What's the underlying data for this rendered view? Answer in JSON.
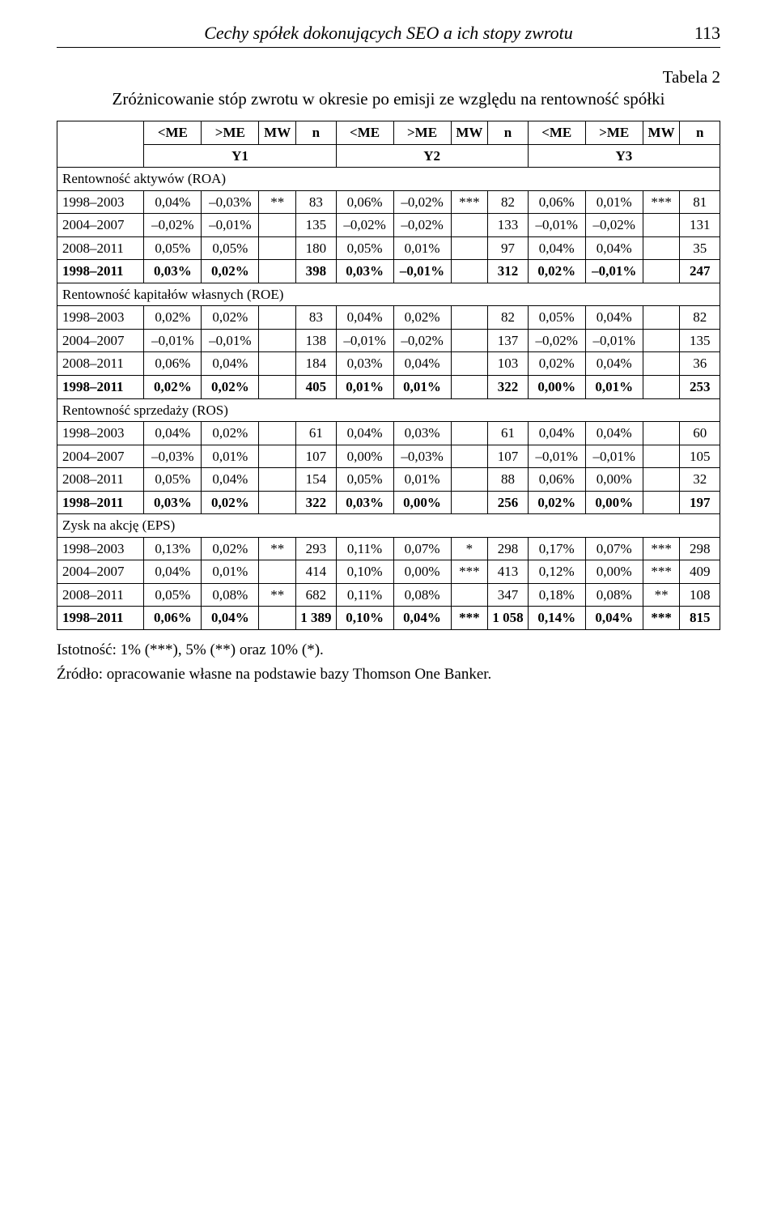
{
  "header": {
    "running_title": "Cechy spółek dokonujących SEO a ich stopy zwrotu",
    "page_number": "113"
  },
  "table_label": "Tabela 2",
  "table_title": "Zróżnicowanie stóp zwrotu w okresie po emisji ze względu na rentowność spółki",
  "col_headers": {
    "lt_me": "<ME",
    "gt_me": ">ME",
    "mw": "MW",
    "n": "n",
    "y1": "Y1",
    "y2": "Y2",
    "y3": "Y3"
  },
  "sections": [
    {
      "title": "Rentowność aktywów (ROA)",
      "rows": [
        {
          "period": "1998–2003",
          "lt1": "0,04%",
          "gt1": "–0,03%",
          "mw1": "**",
          "n1": "83",
          "lt2": "0,06%",
          "gt2": "–0,02%",
          "mw2": "***",
          "n2": "82",
          "lt3": "0,06%",
          "gt3": "0,01%",
          "mw3": "***",
          "n3": "81"
        },
        {
          "period": "2004–2007",
          "lt1": "–0,02%",
          "gt1": "–0,01%",
          "mw1": "",
          "n1": "135",
          "lt2": "–0,02%",
          "gt2": "–0,02%",
          "mw2": "",
          "n2": "133",
          "lt3": "–0,01%",
          "gt3": "–0,02%",
          "mw3": "",
          "n3": "131"
        },
        {
          "period": "2008–2011",
          "lt1": "0,05%",
          "gt1": "0,05%",
          "mw1": "",
          "n1": "180",
          "lt2": "0,05%",
          "gt2": "0,01%",
          "mw2": "",
          "n2": "97",
          "lt3": "0,04%",
          "gt3": "0,04%",
          "mw3": "",
          "n3": "35"
        },
        {
          "period": "1998–2011",
          "lt1": "0,03%",
          "gt1": "0,02%",
          "mw1": "",
          "n1": "398",
          "lt2": "0,03%",
          "gt2": "–0,01%",
          "mw2": "",
          "n2": "312",
          "lt3": "0,02%",
          "gt3": "–0,01%",
          "mw3": "",
          "n3": "247",
          "bold": true
        }
      ]
    },
    {
      "title": "Rentowność kapitałów własnych (ROE)",
      "rows": [
        {
          "period": "1998–2003",
          "lt1": "0,02%",
          "gt1": "0,02%",
          "mw1": "",
          "n1": "83",
          "lt2": "0,04%",
          "gt2": "0,02%",
          "mw2": "",
          "n2": "82",
          "lt3": "0,05%",
          "gt3": "0,04%",
          "mw3": "",
          "n3": "82"
        },
        {
          "period": "2004–2007",
          "lt1": "–0,01%",
          "gt1": "–0,01%",
          "mw1": "",
          "n1": "138",
          "lt2": "–0,01%",
          "gt2": "–0,02%",
          "mw2": "",
          "n2": "137",
          "lt3": "–0,02%",
          "gt3": "–0,01%",
          "mw3": "",
          "n3": "135"
        },
        {
          "period": "2008–2011",
          "lt1": "0,06%",
          "gt1": "0,04%",
          "mw1": "",
          "n1": "184",
          "lt2": "0,03%",
          "gt2": "0,04%",
          "mw2": "",
          "n2": "103",
          "lt3": "0,02%",
          "gt3": "0,04%",
          "mw3": "",
          "n3": "36"
        },
        {
          "period": "1998–2011",
          "lt1": "0,02%",
          "gt1": "0,02%",
          "mw1": "",
          "n1": "405",
          "lt2": "0,01%",
          "gt2": "0,01%",
          "mw2": "",
          "n2": "322",
          "lt3": "0,00%",
          "gt3": "0,01%",
          "mw3": "",
          "n3": "253",
          "bold": true
        }
      ]
    },
    {
      "title": "Rentowność sprzedaży (ROS)",
      "rows": [
        {
          "period": "1998–2003",
          "lt1": "0,04%",
          "gt1": "0,02%",
          "mw1": "",
          "n1": "61",
          "lt2": "0,04%",
          "gt2": "0,03%",
          "mw2": "",
          "n2": "61",
          "lt3": "0,04%",
          "gt3": "0,04%",
          "mw3": "",
          "n3": "60"
        },
        {
          "period": "2004–2007",
          "lt1": "–0,03%",
          "gt1": "0,01%",
          "mw1": "",
          "n1": "107",
          "lt2": "0,00%",
          "gt2": "–0,03%",
          "mw2": "",
          "n2": "107",
          "lt3": "–0,01%",
          "gt3": "–0,01%",
          "mw3": "",
          "n3": "105"
        },
        {
          "period": "2008–2011",
          "lt1": "0,05%",
          "gt1": "0,04%",
          "mw1": "",
          "n1": "154",
          "lt2": "0,05%",
          "gt2": "0,01%",
          "mw2": "",
          "n2": "88",
          "lt3": "0,06%",
          "gt3": "0,00%",
          "mw3": "",
          "n3": "32"
        },
        {
          "period": "1998–2011",
          "lt1": "0,03%",
          "gt1": "0,02%",
          "mw1": "",
          "n1": "322",
          "lt2": "0,03%",
          "gt2": "0,00%",
          "mw2": "",
          "n2": "256",
          "lt3": "0,02%",
          "gt3": "0,00%",
          "mw3": "",
          "n3": "197",
          "bold": true
        }
      ]
    },
    {
      "title": "Zysk na akcję (EPS)",
      "rows": [
        {
          "period": "1998–2003",
          "lt1": "0,13%",
          "gt1": "0,02%",
          "mw1": "**",
          "n1": "293",
          "lt2": "0,11%",
          "gt2": "0,07%",
          "mw2": "*",
          "n2": "298",
          "lt3": "0,17%",
          "gt3": "0,07%",
          "mw3": "***",
          "n3": "298"
        },
        {
          "period": "2004–2007",
          "lt1": "0,04%",
          "gt1": "0,01%",
          "mw1": "",
          "n1": "414",
          "lt2": "0,10%",
          "gt2": "0,00%",
          "mw2": "***",
          "n2": "413",
          "lt3": "0,12%",
          "gt3": "0,00%",
          "mw3": "***",
          "n3": "409"
        },
        {
          "period": "2008–2011",
          "lt1": "0,05%",
          "gt1": "0,08%",
          "mw1": "**",
          "n1": "682",
          "lt2": "0,11%",
          "gt2": "0,08%",
          "mw2": "",
          "n2": "347",
          "lt3": "0,18%",
          "gt3": "0,08%",
          "mw3": "**",
          "n3": "108"
        },
        {
          "period": "1998–2011",
          "lt1": "0,06%",
          "gt1": "0,04%",
          "mw1": "",
          "n1": "1 389",
          "lt2": "0,10%",
          "gt2": "0,04%",
          "mw2": "***",
          "n2": "1 058",
          "lt3": "0,14%",
          "gt3": "0,04%",
          "mw3": "***",
          "n3": "815",
          "bold": true
        }
      ]
    }
  ],
  "footnote": "Istotność: 1% (***), 5% (**) oraz 10% (*).",
  "source": "Źródło: opracowanie własne na podstawie bazy Thomson One Banker."
}
